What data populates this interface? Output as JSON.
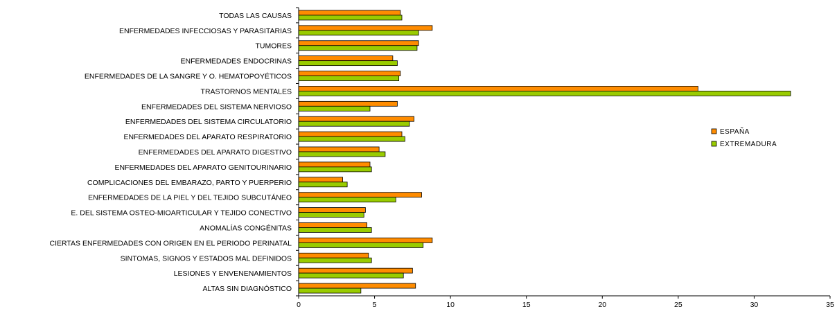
{
  "chart_data": {
    "type": "bar",
    "orientation": "horizontal",
    "categories": [
      "TODAS LAS CAUSAS",
      "ENFERMEDADES INFECCIOSAS Y PARASITARIAS",
      "TUMORES",
      "ENFERMEDADES ENDOCRINAS",
      "ENFERMEDADES DE LA SANGRE Y O. HEMATOPOYÉTICOS",
      "TRASTORNOS MENTALES",
      "ENFERMEDADES DEL SISTEMA NERVIOSO",
      "ENFERMEDADES DEL SISTEMA CIRCULATORIO",
      "ENFERMEDADES DEL APARATO RESPIRATORIO",
      "ENFERMEDADES DEL APARATO DIGESTIVO",
      "ENFERMEDADES DEL APARATO GENITOURINARIO",
      "COMPLICACIONES DEL EMBARAZO, PARTO Y PUERPERIO",
      "ENFERMEDADES DE LA PIEL Y DEL TEJIDO SUBCUTÁNEO",
      "E. DEL SISTEMA OSTEO-MIOARTICULAR Y TEJIDO CONECTIVO",
      "ANOMALÍAS CONGÉNITAS",
      "CIERTAS ENFERMEDADES CON ORIGEN EN EL PERIODO PERINATAL",
      "SINTOMAS, SIGNOS Y ESTADOS MAL DEFINIDOS",
      "LESIONES Y ENVENENAMIENTOS",
      "ALTAS SIN DIAGNÓSTICO"
    ],
    "series": [
      {
        "name": "ESPAÑA",
        "color": "#ff8c00",
        "values": [
          6.7,
          8.8,
          7.9,
          6.2,
          6.7,
          26.3,
          6.5,
          7.6,
          6.8,
          5.3,
          4.7,
          2.9,
          8.1,
          4.4,
          4.5,
          8.8,
          4.6,
          7.5,
          7.7
        ]
      },
      {
        "name": "EXTREMADURA",
        "color": "#99cc00",
        "values": [
          6.8,
          7.9,
          7.8,
          6.5,
          6.6,
          32.4,
          4.7,
          7.3,
          7.0,
          5.7,
          4.8,
          3.2,
          6.4,
          4.3,
          4.8,
          8.2,
          4.8,
          6.9,
          4.1
        ]
      }
    ],
    "xlim": [
      0,
      35
    ],
    "xticks": [
      "0",
      "5",
      "10",
      "15",
      "20",
      "25",
      "30",
      "35"
    ],
    "title": "",
    "xlabel": "",
    "ylabel": "",
    "grid": false,
    "legend_position": "right"
  }
}
